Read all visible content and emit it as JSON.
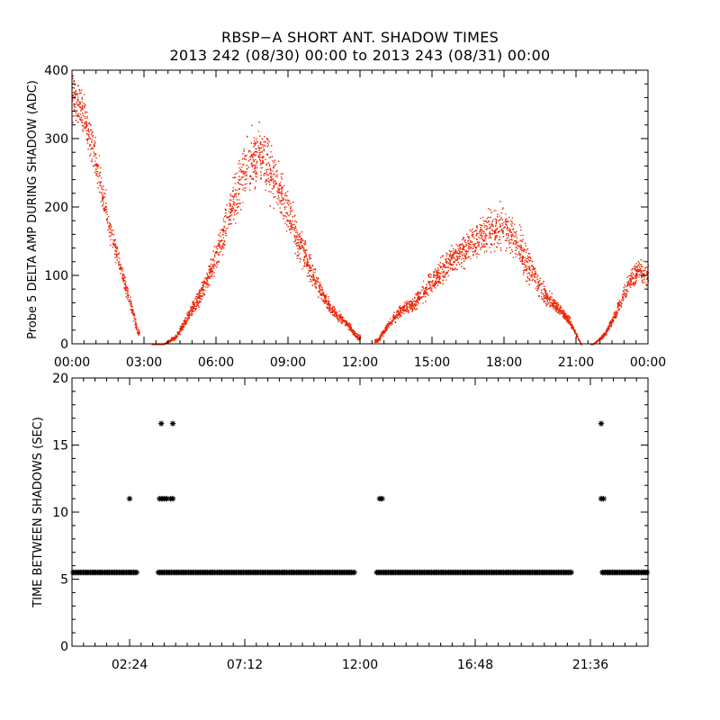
{
  "title": "RBSP−A SHORT ANT. SHADOW TIMES",
  "subtitle": "2013 242 (08/30) 00:00 to 2013 243 (08/31) 00:00",
  "colors": {
    "top_points": "#ee2200",
    "bottom_points": "#000000",
    "axes": "#000000"
  },
  "chart_data": [
    {
      "type": "scatter",
      "title": "",
      "ylabel": "Probe 5 DELTA AMP DURING SHADOW (ADC)",
      "xlabel": "",
      "xlim": [
        0,
        24
      ],
      "ylim": [
        0,
        400
      ],
      "x_tick_values": [
        0,
        3,
        6,
        9,
        12,
        15,
        18,
        21,
        24
      ],
      "x_tick_labels": [
        "00:00",
        "03:00",
        "06:00",
        "09:00",
        "12:00",
        "15:00",
        "18:00",
        "21:00",
        "00:00"
      ],
      "y_tick_values": [
        0,
        100,
        200,
        300,
        400
      ],
      "y_tick_labels": [
        "0",
        "100",
        "200",
        "300",
        "400"
      ],
      "marker": "dot",
      "units_x": "hours UT",
      "envelope": {
        "x": [
          0.0,
          0.5,
          1.0,
          1.5,
          2.0,
          2.5,
          2.7,
          3.2,
          3.8,
          4.3,
          4.8,
          5.3,
          5.8,
          6.3,
          6.8,
          7.3,
          7.8,
          8.3,
          8.8,
          9.3,
          9.8,
          10.3,
          10.8,
          11.3,
          11.9,
          12.7,
          13.2,
          13.7,
          14.2,
          14.7,
          15.2,
          15.7,
          16.2,
          16.7,
          17.2,
          17.7,
          18.2,
          18.7,
          19.2,
          19.7,
          20.2,
          20.7,
          21.2,
          21.7,
          22.2,
          22.7,
          23.2,
          23.6,
          24.0
        ],
        "y": [
          370,
          330,
          260,
          180,
          110,
          50,
          20,
          0,
          0,
          10,
          40,
          70,
          110,
          160,
          220,
          260,
          280,
          250,
          210,
          160,
          120,
          80,
          50,
          35,
          10,
          5,
          30,
          50,
          60,
          80,
          100,
          120,
          135,
          150,
          160,
          170,
          165,
          140,
          100,
          70,
          55,
          35,
          0,
          0,
          15,
          50,
          90,
          110,
          100
        ],
        "spread": [
          50,
          45,
          40,
          30,
          20,
          12,
          8,
          0,
          0,
          5,
          10,
          18,
          25,
          35,
          50,
          60,
          60,
          55,
          45,
          40,
          30,
          20,
          12,
          8,
          5,
          5,
          8,
          12,
          15,
          20,
          25,
          28,
          30,
          35,
          40,
          45,
          45,
          40,
          30,
          20,
          12,
          8,
          0,
          0,
          5,
          12,
          20,
          25,
          25
        ],
        "gaps": [
          [
            2.8,
            3.3
          ],
          [
            12.0,
            12.6
          ],
          [
            21.2,
            21.6
          ]
        ]
      }
    },
    {
      "type": "scatter",
      "title": "",
      "ylabel": "TIME BETWEEN SHADOWS (SEC)",
      "xlabel": "",
      "xlim": [
        0,
        24
      ],
      "ylim": [
        0,
        20
      ],
      "x_tick_values": [
        2.4,
        7.2,
        12.0,
        16.8,
        21.6
      ],
      "x_tick_labels": [
        "02:24",
        "07:12",
        "12:00",
        "16:48",
        "21:36"
      ],
      "y_tick_values": [
        0,
        5,
        10,
        15,
        20
      ],
      "y_tick_labels": [
        "0",
        "5",
        "10",
        "15",
        "20"
      ],
      "marker": "asterisk",
      "baseline": {
        "y": 5.5,
        "segments": [
          [
            0.05,
            2.75
          ],
          [
            3.6,
            11.8
          ],
          [
            12.7,
            20.8
          ],
          [
            22.1,
            24.0
          ]
        ]
      },
      "points": [
        {
          "x": 2.4,
          "y": 11.0
        },
        {
          "x": 3.72,
          "y": 16.6
        },
        {
          "x": 4.2,
          "y": 16.6
        },
        {
          "x": 3.65,
          "y": 11.0
        },
        {
          "x": 3.75,
          "y": 11.0
        },
        {
          "x": 3.85,
          "y": 11.0
        },
        {
          "x": 3.95,
          "y": 11.0
        },
        {
          "x": 4.1,
          "y": 11.0
        },
        {
          "x": 4.2,
          "y": 11.0
        },
        {
          "x": 12.82,
          "y": 11.0
        },
        {
          "x": 12.92,
          "y": 11.0
        },
        {
          "x": 22.05,
          "y": 16.6
        },
        {
          "x": 22.05,
          "y": 11.0
        },
        {
          "x": 22.15,
          "y": 11.0
        }
      ]
    }
  ]
}
